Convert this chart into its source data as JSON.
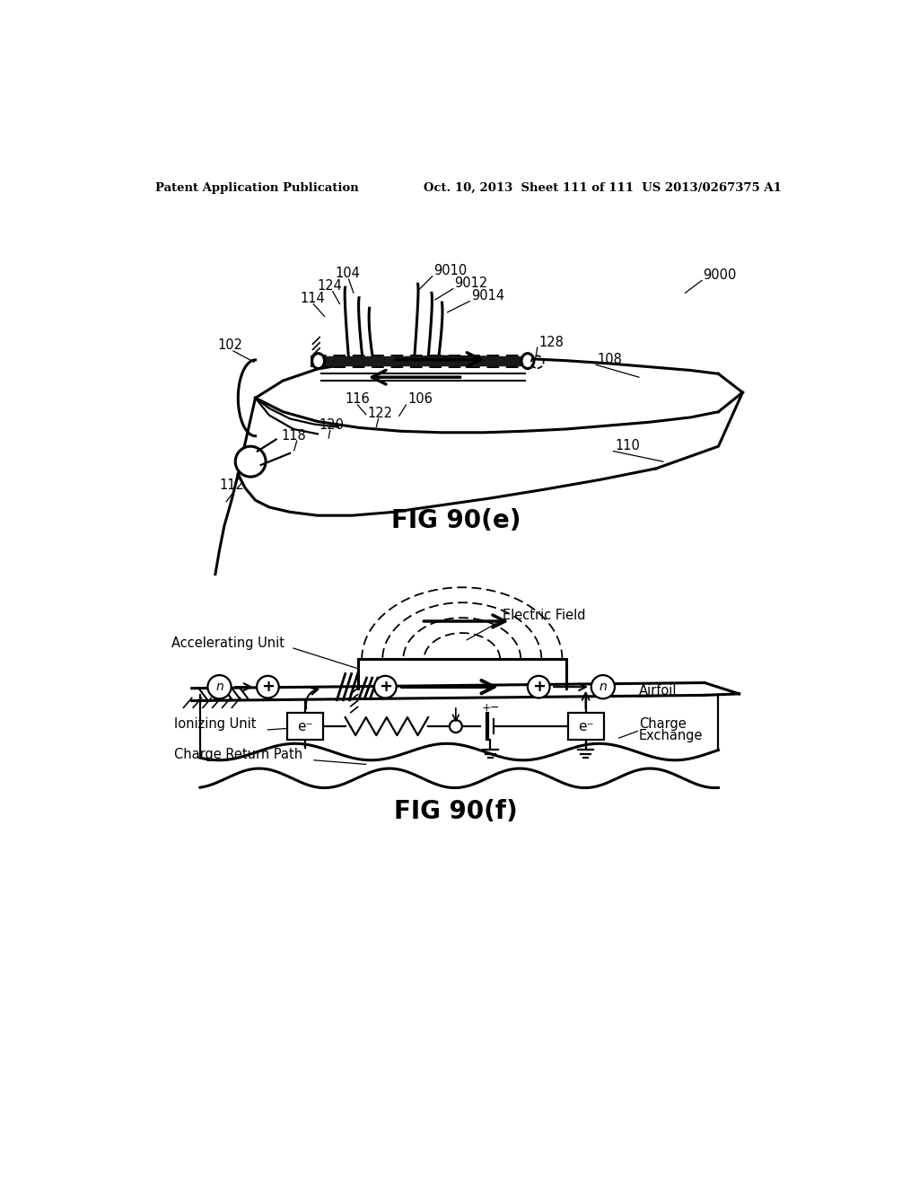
{
  "bg_color": "#ffffff",
  "header_left": "Patent Application Publication",
  "header_right": "Oct. 10, 2013  Sheet 111 of 111  US 2013/0267375 A1",
  "fig_label_e": "FIG 90(e)",
  "fig_label_f": "FIG 90(f)",
  "text_color": "#000000",
  "lw": 1.6,
  "lw2": 2.2,
  "lw3": 3.0
}
